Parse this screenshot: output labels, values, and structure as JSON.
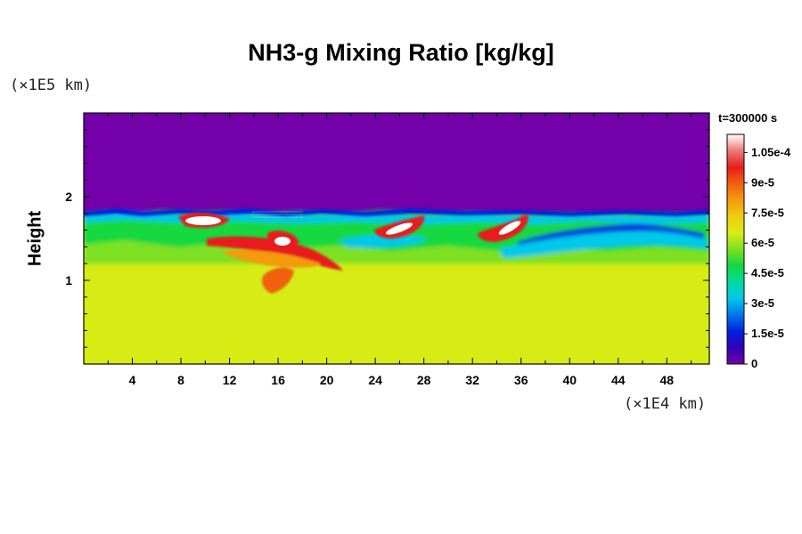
{
  "chart_data": {
    "type": "heatmap",
    "title": "NH3-g Mixing Ratio [kg/kg]",
    "ylabel": "Height",
    "y_unit": "(×1E5 km)",
    "x_unit": "(×1E4 km)",
    "time_label": "t=300000 s",
    "x_ticks": [
      4,
      8,
      12,
      16,
      20,
      24,
      28,
      32,
      36,
      40,
      44,
      48
    ],
    "y_ticks": [
      1,
      2
    ],
    "xlim": [
      0,
      51.5
    ],
    "ylim": [
      0,
      3.0
    ],
    "colorbar": {
      "range": [
        0,
        0.000114
      ],
      "ticks": [
        "0",
        "1.5e-5",
        "3e-5",
        "4.5e-5",
        "6e-5",
        "7.5e-5",
        "9e-5",
        "1.05e-4"
      ],
      "tick_values": [
        0,
        1.5e-05,
        3e-05,
        4.5e-05,
        6e-05,
        7.5e-05,
        9e-05,
        0.000105
      ]
    },
    "regions": {
      "upper_layer_value": 0,
      "lower_layer_value": 7.8e-05,
      "mixed_layer_range": [
        1.2,
        1.9
      ]
    }
  },
  "colors": {
    "background": "#ffffff",
    "upper_layer": "#7300a8",
    "lower_layer": "#d6ec14",
    "palette": [
      "#7000a8",
      "#3300b8",
      "#0022dd",
      "#0077ee",
      "#00c8e8",
      "#00dc9c",
      "#12d840",
      "#7ee020",
      "#d8ec14",
      "#f0cc10",
      "#f49a0e",
      "#f06010",
      "#e81c1c",
      "#f07878",
      "#ffffff"
    ]
  }
}
